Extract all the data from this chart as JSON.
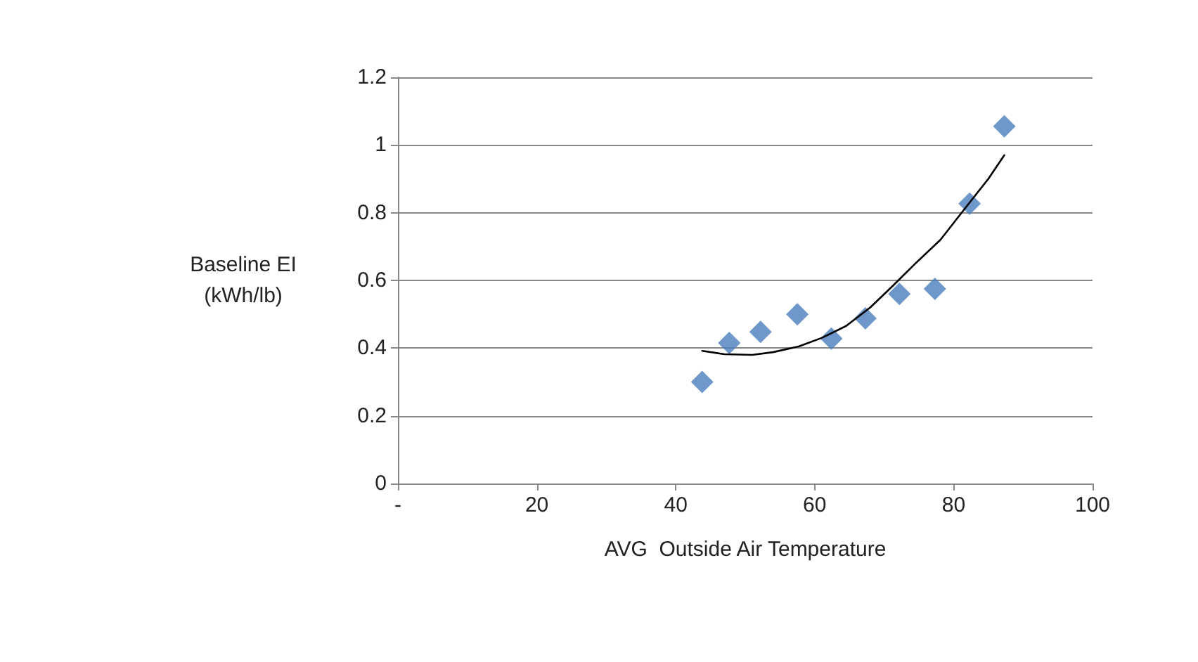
{
  "chart_data": {
    "type": "scatter",
    "xlabel": "AVG  Outside Air Temperature",
    "ylabel": "Baseline EI\n(kWh/lb)",
    "series": [
      {
        "color": "#4a7ebb",
        "marker": "diamond",
        "x": [
          43.8,
          47.7,
          52.2,
          57.5,
          62.4,
          67.3,
          72.2,
          77.3,
          82.3,
          87.3
        ],
        "values": [
          0.3,
          0.415,
          0.448,
          0.5,
          0.428,
          0.488,
          0.56,
          0.575,
          0.827,
          1.055
        ]
      },
      {
        "type": "line",
        "color": "#000000",
        "marker": "none",
        "line_style": "solid",
        "x": [
          43.8,
          47,
          51,
          54,
          57.7,
          61,
          64.5,
          68,
          71.3,
          74.5,
          78.1,
          82.3,
          85,
          87.3
        ],
        "values": [
          0.392,
          0.382,
          0.38,
          0.388,
          0.405,
          0.43,
          0.465,
          0.52,
          0.585,
          0.65,
          0.72,
          0.83,
          0.9,
          0.97
        ]
      }
    ],
    "xlim": [
      0,
      100
    ],
    "xticks": [
      {
        "value": 0,
        "label": "-"
      },
      20,
      40,
      60,
      80,
      100
    ],
    "ylim": [
      0,
      1.2
    ],
    "yticks": [
      0,
      0.2,
      0.4,
      0.6,
      0.8,
      1,
      1.2
    ],
    "grid": "y"
  }
}
